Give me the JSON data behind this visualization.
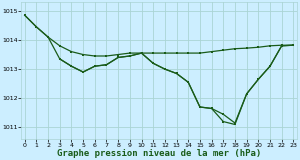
{
  "bg_color": "#cceeff",
  "grid_color": "#aad4d4",
  "line_color": "#1a5c1a",
  "xlabel": "Graphe pression niveau de la mer (hPa)",
  "xlabel_fontsize": 6.5,
  "ylim": [
    1010.6,
    1015.3
  ],
  "xlim": [
    -0.3,
    23.3
  ],
  "yticks": [
    1011,
    1012,
    1013,
    1014,
    1015
  ],
  "xticks": [
    0,
    1,
    2,
    3,
    4,
    5,
    6,
    7,
    8,
    9,
    10,
    11,
    12,
    13,
    14,
    15,
    16,
    17,
    18,
    19,
    20,
    21,
    22,
    23
  ],
  "line1_x": [
    0,
    1,
    2,
    3,
    4,
    5,
    6,
    7,
    8,
    9,
    10,
    11,
    12,
    13,
    14,
    15,
    16,
    17,
    18,
    19,
    20,
    21,
    22,
    23
  ],
  "line1_y": [
    1014.85,
    1014.45,
    1014.1,
    1013.8,
    1013.6,
    1013.5,
    1013.45,
    1013.45,
    1013.5,
    1013.55,
    1013.55,
    1013.55,
    1013.55,
    1013.55,
    1013.55,
    1013.55,
    1013.6,
    1013.65,
    1013.7,
    1013.72,
    1013.75,
    1013.8,
    1013.82,
    1013.82
  ],
  "line2_x": [
    0,
    1,
    2,
    3,
    4,
    5,
    6,
    7,
    8,
    9,
    10,
    11,
    12,
    13,
    14,
    15,
    16,
    17,
    18,
    19,
    20,
    21,
    22,
    23
  ],
  "line2_y": [
    1014.85,
    1014.45,
    1014.1,
    1013.35,
    1013.1,
    1012.9,
    1013.1,
    1013.15,
    1013.4,
    1013.45,
    1013.55,
    1013.2,
    1013.0,
    1012.85,
    1012.55,
    1011.7,
    1011.65,
    1011.45,
    1011.15,
    1012.15,
    1012.65,
    1013.1,
    1013.8,
    1013.82
  ],
  "line3_x": [
    3,
    4,
    5,
    6,
    7,
    8,
    9,
    10,
    11,
    12,
    13,
    14,
    15,
    16,
    17,
    18,
    19,
    20,
    21,
    22,
    23
  ],
  "line3_y": [
    1013.35,
    1013.1,
    1012.9,
    1013.1,
    1013.15,
    1013.4,
    1013.45,
    1013.55,
    1013.2,
    1013.0,
    1012.85,
    1012.55,
    1011.7,
    1011.65,
    1011.2,
    1011.1,
    1012.15,
    1012.65,
    1013.1,
    1013.8,
    1013.82
  ]
}
